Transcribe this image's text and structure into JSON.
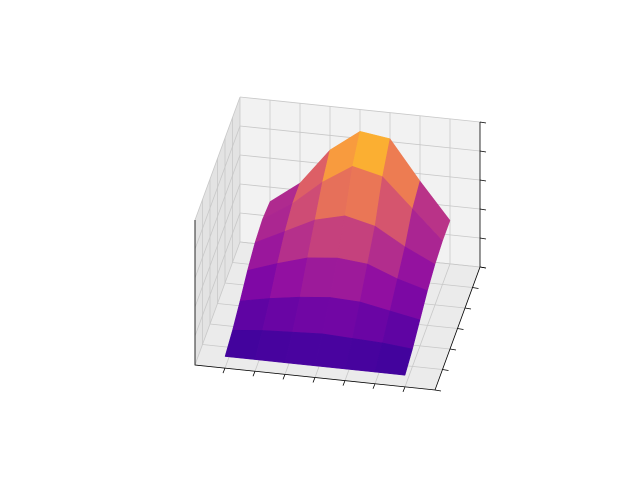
{
  "chart_data": {
    "type": "surface",
    "colormap": "plasma",
    "x": [
      0,
      1,
      2,
      3,
      4,
      5,
      6
    ],
    "y": [
      0,
      1,
      2,
      3,
      4,
      5,
      6
    ],
    "z": [
      [
        0.08,
        0.08,
        0.08,
        0.08,
        0.08,
        0.08,
        0.08
      ],
      [
        0.12,
        0.14,
        0.15,
        0.16,
        0.15,
        0.14,
        0.12
      ],
      [
        0.18,
        0.22,
        0.25,
        0.27,
        0.26,
        0.22,
        0.18
      ],
      [
        0.25,
        0.32,
        0.38,
        0.4,
        0.38,
        0.3,
        0.24
      ],
      [
        0.3,
        0.4,
        0.5,
        0.55,
        0.5,
        0.38,
        0.28
      ],
      [
        0.32,
        0.45,
        0.62,
        0.75,
        0.7,
        0.5,
        0.3
      ],
      [
        0.3,
        0.45,
        0.7,
        0.85,
        0.82,
        0.55,
        0.3
      ]
    ],
    "xlim": [
      -1,
      7
    ],
    "ylim": [
      0,
      6
    ],
    "zlim": [
      0,
      1
    ],
    "xticks": [
      0,
      1,
      2,
      3,
      4,
      5,
      6
    ],
    "yticks": [
      0,
      1,
      2,
      3,
      4,
      5,
      6
    ],
    "zticks": [
      0,
      0.2,
      0.4,
      0.6,
      0.8,
      1
    ],
    "grid": true
  }
}
